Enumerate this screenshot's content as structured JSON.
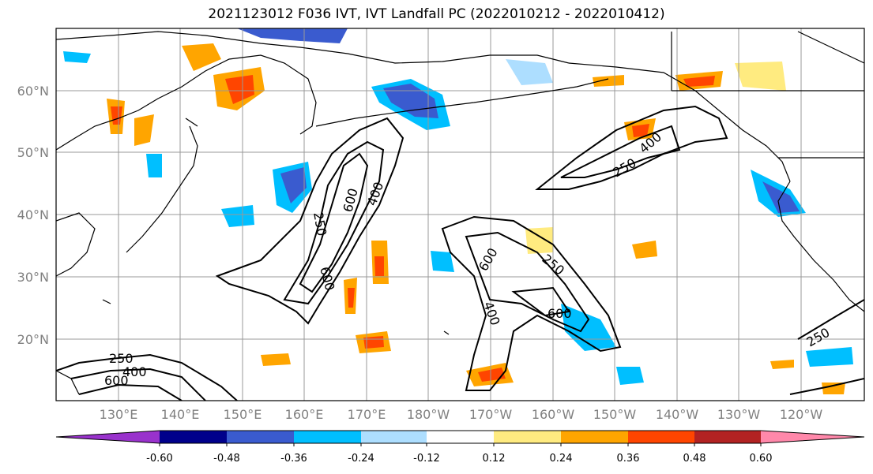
{
  "title": "2021123012 F036 IVT, IVT Landfall PC (2022010212 - 2022010412)",
  "lat_labels": [
    "60°N",
    "50°N",
    "40°N",
    "30°N",
    "20°N"
  ],
  "lon_labels": [
    "130°E",
    "140°E",
    "150°E",
    "160°E",
    "170°E",
    "180°W",
    "170°W",
    "160°W",
    "150°W",
    "140°W",
    "130°W",
    "120°W"
  ],
  "colorbar": {
    "colors": [
      "#9932CC",
      "#00008B",
      "#3A5BCF",
      "#00BFFF",
      "#1EAAF1",
      "#ADDEFF",
      "#FFFFFF",
      "#FFEB80",
      "#FFA500",
      "#FF4500",
      "#B22222",
      "#FF88AA"
    ],
    "tick_labels": [
      "-0.60",
      "-0.48",
      "-0.36",
      "-0.24",
      "-0.12",
      "0.12",
      "0.24",
      "0.36",
      "0.48",
      "0.60"
    ]
  },
  "contour_labels": [
    "250",
    "400",
    "600",
    "250",
    "400",
    "600",
    "250",
    "400",
    "600",
    "250",
    "400",
    "600",
    "250"
  ],
  "contour_levels": [
    "250",
    "400",
    "600"
  ]
}
